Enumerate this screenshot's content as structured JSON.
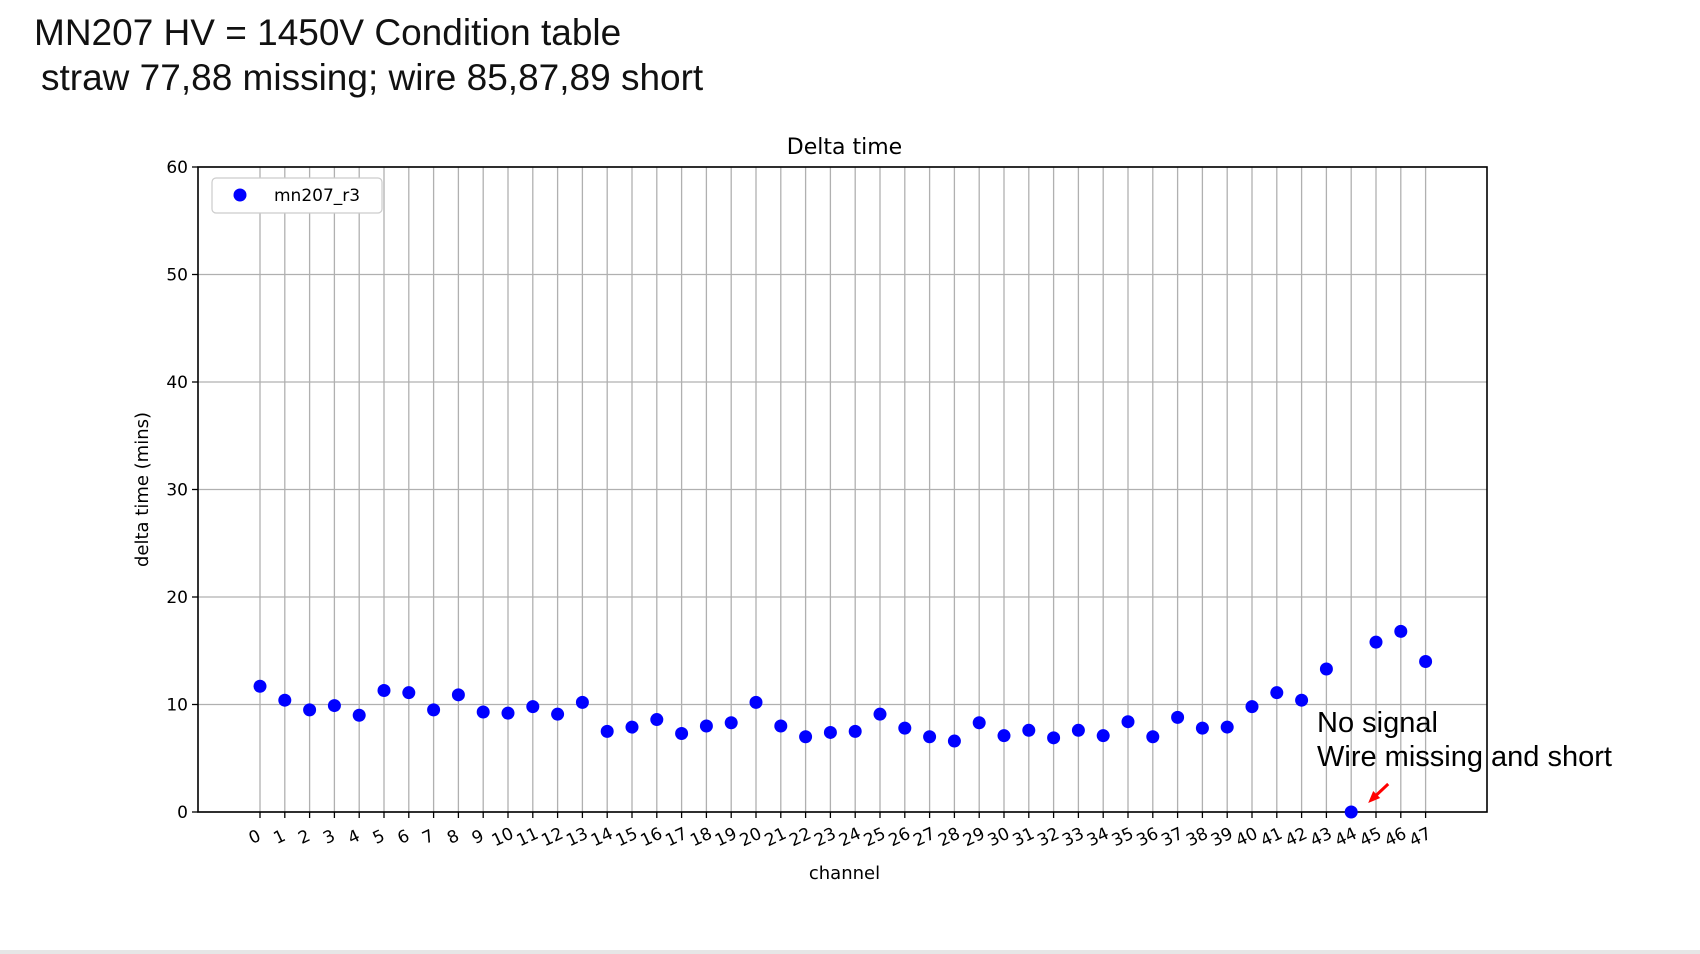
{
  "slide": {
    "title_line_1": "MN207 HV = 1450V Condition table",
    "title_line_2": "straw 77,88 missing; wire 85,87,89 short"
  },
  "annotation": {
    "line_1": "No signal",
    "line_2": "Wire missing and short",
    "arrow_color": "#ff0000",
    "points_to_channel": 44
  },
  "colors": {
    "series": "#0000ff",
    "grid": "#b0b0b0",
    "axes": "#000000"
  },
  "chart_data": {
    "type": "scatter",
    "title": "Delta time",
    "xlabel": "channel",
    "ylabel": "delta time (mins)",
    "ylim": [
      0,
      60
    ],
    "yticks": [
      0,
      10,
      20,
      30,
      40,
      50,
      60
    ],
    "xticks": [
      0,
      1,
      2,
      3,
      4,
      5,
      6,
      7,
      8,
      9,
      10,
      11,
      12,
      13,
      14,
      15,
      16,
      17,
      18,
      19,
      20,
      21,
      22,
      23,
      24,
      25,
      26,
      27,
      28,
      29,
      30,
      31,
      32,
      33,
      34,
      35,
      36,
      37,
      38,
      39,
      40,
      41,
      42,
      43,
      44,
      45,
      46,
      47
    ],
    "grid": true,
    "legend_position": "top-left",
    "series": [
      {
        "name": "mn207_r3",
        "color": "#0000ff",
        "x": [
          0,
          1,
          2,
          3,
          4,
          5,
          6,
          7,
          8,
          9,
          10,
          11,
          12,
          13,
          14,
          15,
          16,
          17,
          18,
          19,
          20,
          21,
          22,
          23,
          24,
          25,
          26,
          27,
          28,
          29,
          30,
          31,
          32,
          33,
          34,
          35,
          36,
          37,
          38,
          39,
          40,
          41,
          42,
          43,
          44,
          45,
          46,
          47
        ],
        "y": [
          11.7,
          10.4,
          9.5,
          9.9,
          9.0,
          11.3,
          11.1,
          9.5,
          10.9,
          9.3,
          9.2,
          9.8,
          9.1,
          10.2,
          7.5,
          7.9,
          8.6,
          7.3,
          8.0,
          8.3,
          10.2,
          8.0,
          7.0,
          7.4,
          7.5,
          9.1,
          7.8,
          7.0,
          6.6,
          8.3,
          7.1,
          7.6,
          6.9,
          7.6,
          7.1,
          8.4,
          7.0,
          8.8,
          7.8,
          7.9,
          9.8,
          11.1,
          10.4,
          13.3,
          0.0,
          15.8,
          16.8,
          14.0
        ]
      }
    ]
  }
}
